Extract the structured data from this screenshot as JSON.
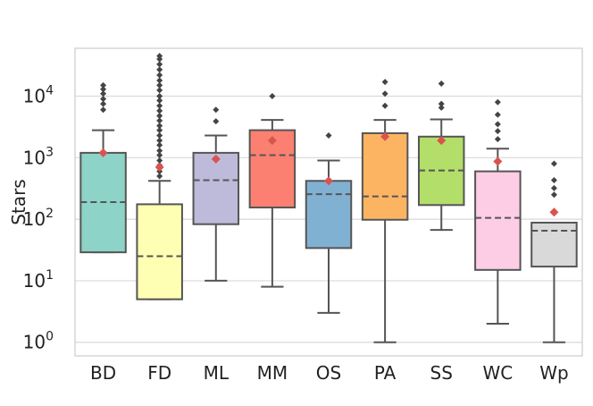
{
  "chart_data": {
    "type": "box",
    "title": "",
    "xlabel": "",
    "ylabel": "Stars",
    "yscale": "log",
    "ylim": [
      0.6,
      60000
    ],
    "grid": "horizontal",
    "y_ticks": [
      {
        "value": 1,
        "base": "10",
        "exp": "0"
      },
      {
        "value": 10,
        "base": "10",
        "exp": "1"
      },
      {
        "value": 100,
        "base": "10",
        "exp": "2"
      },
      {
        "value": 1000,
        "base": "10",
        "exp": "3"
      },
      {
        "value": 10000,
        "base": "10",
        "exp": "4"
      }
    ],
    "categories": [
      "BD",
      "FD",
      "ML",
      "MM",
      "OS",
      "PA",
      "SS",
      "WC",
      "Wp"
    ],
    "boxes": [
      {
        "name": "BD",
        "color": "#8dd3c7",
        "whisker_low": 29,
        "q1": 29,
        "median": 190,
        "q3": 1200,
        "whisker_high": 2800,
        "mean": 1200,
        "outliers": [
          6000,
          7500,
          9000,
          11000,
          13000,
          15000
        ]
      },
      {
        "name": "FD",
        "color": "#ffffb3",
        "whisker_low": 5,
        "q1": 5,
        "median": 25,
        "q3": 175,
        "whisker_high": 420,
        "mean": 700,
        "outliers": [
          500,
          600,
          750,
          900,
          1100,
          1300,
          1600,
          1900,
          2300,
          2800,
          3300,
          4000,
          4800,
          5800,
          7000,
          8500,
          10000,
          12500,
          15000,
          18000,
          22000,
          27000,
          33000,
          40000,
          45000
        ]
      },
      {
        "name": "ML",
        "color": "#bebada",
        "whisker_low": 10,
        "q1": 83,
        "median": 430,
        "q3": 1200,
        "whisker_high": 2300,
        "mean": 950,
        "outliers": [
          3900,
          6000
        ]
      },
      {
        "name": "MM",
        "color": "#fb8072",
        "whisker_low": 8,
        "q1": 155,
        "median": 1100,
        "q3": 2800,
        "whisker_high": 4100,
        "mean": 1900,
        "outliers": [
          10000
        ]
      },
      {
        "name": "OS",
        "color": "#80b1d3",
        "whisker_low": 3,
        "q1": 34,
        "median": 255,
        "q3": 420,
        "whisker_high": 900,
        "mean": 420,
        "outliers": [
          2300
        ]
      },
      {
        "name": "PA",
        "color": "#fdb462",
        "whisker_low": 1,
        "q1": 98,
        "median": 235,
        "q3": 2500,
        "whisker_high": 4100,
        "mean": 2200,
        "outliers": [
          7000,
          11000,
          17000
        ]
      },
      {
        "name": "SS",
        "color": "#b3de69",
        "whisker_low": 67,
        "q1": 170,
        "median": 620,
        "q3": 2200,
        "whisker_high": 4200,
        "mean": 1900,
        "outliers": [
          6500,
          7500,
          16000
        ]
      },
      {
        "name": "WC",
        "color": "#fccde5",
        "whisker_low": 2,
        "q1": 15,
        "median": 105,
        "q3": 600,
        "whisker_high": 1400,
        "mean": 870,
        "outliers": [
          2000,
          2700,
          3500,
          5000,
          8000
        ]
      },
      {
        "name": "Wp",
        "color": "#d9d9d9",
        "whisker_low": 1,
        "q1": 17,
        "median": 65,
        "q3": 88,
        "whisker_high": 88,
        "mean": 130,
        "outliers": [
          250,
          320,
          430,
          800
        ]
      }
    ],
    "mean_marker_color": "#d9534f"
  }
}
